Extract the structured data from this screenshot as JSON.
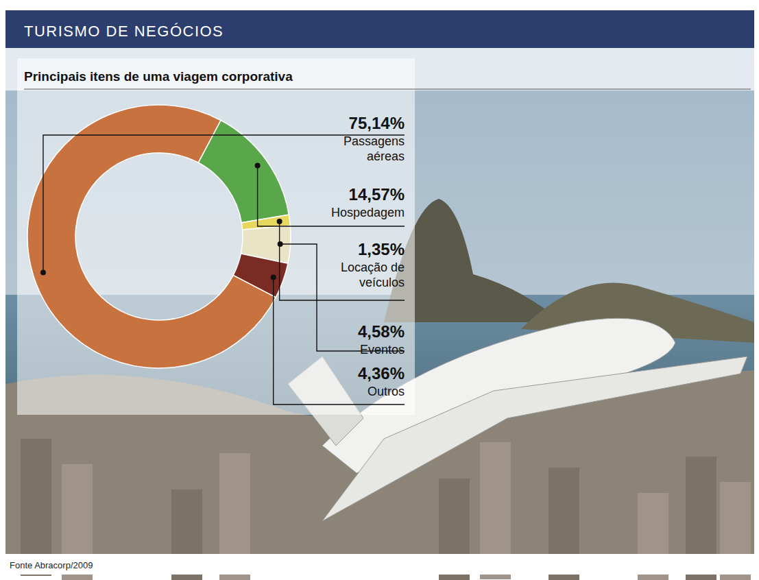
{
  "header": "TURISMO DE NEGÓCIOS",
  "chart_data": {
    "type": "pie",
    "title": "Principais itens de uma viagem corporativa",
    "categories": [
      "Passagens aéreas",
      "Hospedagem",
      "Locação de veículos",
      "Eventos",
      "Outros"
    ],
    "values": [
      75.14,
      14.57,
      1.35,
      4.58,
      4.36
    ],
    "value_labels": [
      "75,14%",
      "14,57%",
      "1,35%",
      "4,58%",
      "4,36%"
    ],
    "colors": [
      "#c8733f",
      "#5aa64a",
      "#e6d85c",
      "#e9e4c6",
      "#7a2b24"
    ],
    "data_labels": true,
    "source": "Fonte Abracorp/2009"
  }
}
